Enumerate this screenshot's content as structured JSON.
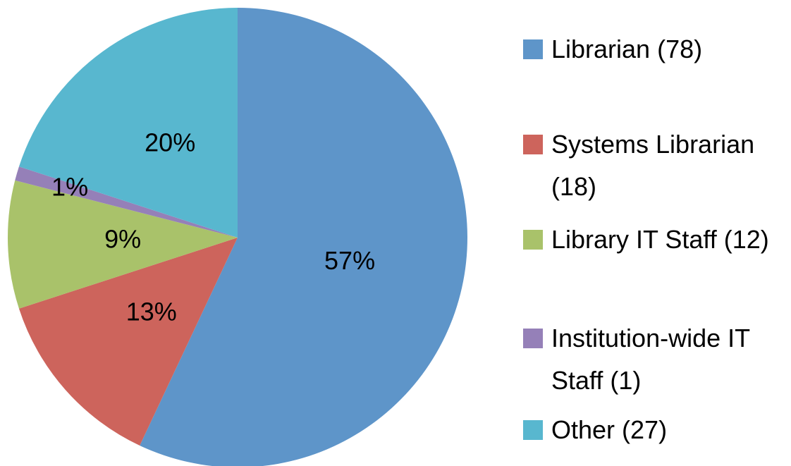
{
  "chart_data": {
    "type": "pie",
    "categories": [
      "Librarian (78)",
      "Systems Librarian (18)",
      "Library IT Staff (12)",
      "Institution-wide IT Staff (1)",
      "Other (27)"
    ],
    "values": [
      57,
      13,
      9,
      1,
      20
    ],
    "value_labels": [
      "57%",
      "13%",
      "9%",
      "1%",
      "20%"
    ],
    "colors": [
      "#5e95c9",
      "#cd645c",
      "#a9c26a",
      "#9580b8",
      "#58b7cf"
    ]
  }
}
